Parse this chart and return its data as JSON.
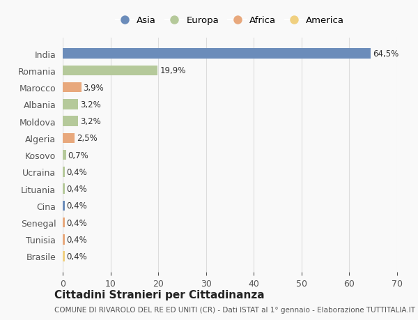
{
  "countries": [
    "India",
    "Romania",
    "Marocco",
    "Albania",
    "Moldova",
    "Algeria",
    "Kosovo",
    "Ucraina",
    "Lituania",
    "Cina",
    "Senegal",
    "Tunisia",
    "Brasile"
  ],
  "values": [
    64.5,
    19.9,
    3.9,
    3.2,
    3.2,
    2.5,
    0.7,
    0.4,
    0.4,
    0.4,
    0.4,
    0.4,
    0.4
  ],
  "labels": [
    "64,5%",
    "19,9%",
    "3,9%",
    "3,2%",
    "3,2%",
    "2,5%",
    "0,7%",
    "0,4%",
    "0,4%",
    "0,4%",
    "0,4%",
    "0,4%",
    "0,4%"
  ],
  "continents": [
    "Asia",
    "Europa",
    "Africa",
    "Europa",
    "Europa",
    "Africa",
    "Europa",
    "Europa",
    "Europa",
    "Asia",
    "Africa",
    "Africa",
    "America"
  ],
  "continent_colors": {
    "Asia": "#6b8cba",
    "Europa": "#b5c99a",
    "Africa": "#e8a87c",
    "America": "#f0d080"
  },
  "legend_order": [
    "Asia",
    "Europa",
    "Africa",
    "America"
  ],
  "xlim": [
    0,
    70
  ],
  "xticks": [
    0,
    10,
    20,
    30,
    40,
    50,
    60,
    70
  ],
  "title": "Cittadini Stranieri per Cittadinanza",
  "subtitle": "COMUNE DI RIVAROLO DEL RE ED UNITI (CR) - Dati ISTAT al 1° gennaio - Elaborazione TUTTITALIA.IT",
  "background_color": "#f9f9f9",
  "bar_height": 0.6,
  "grid_color": "#dddddd"
}
